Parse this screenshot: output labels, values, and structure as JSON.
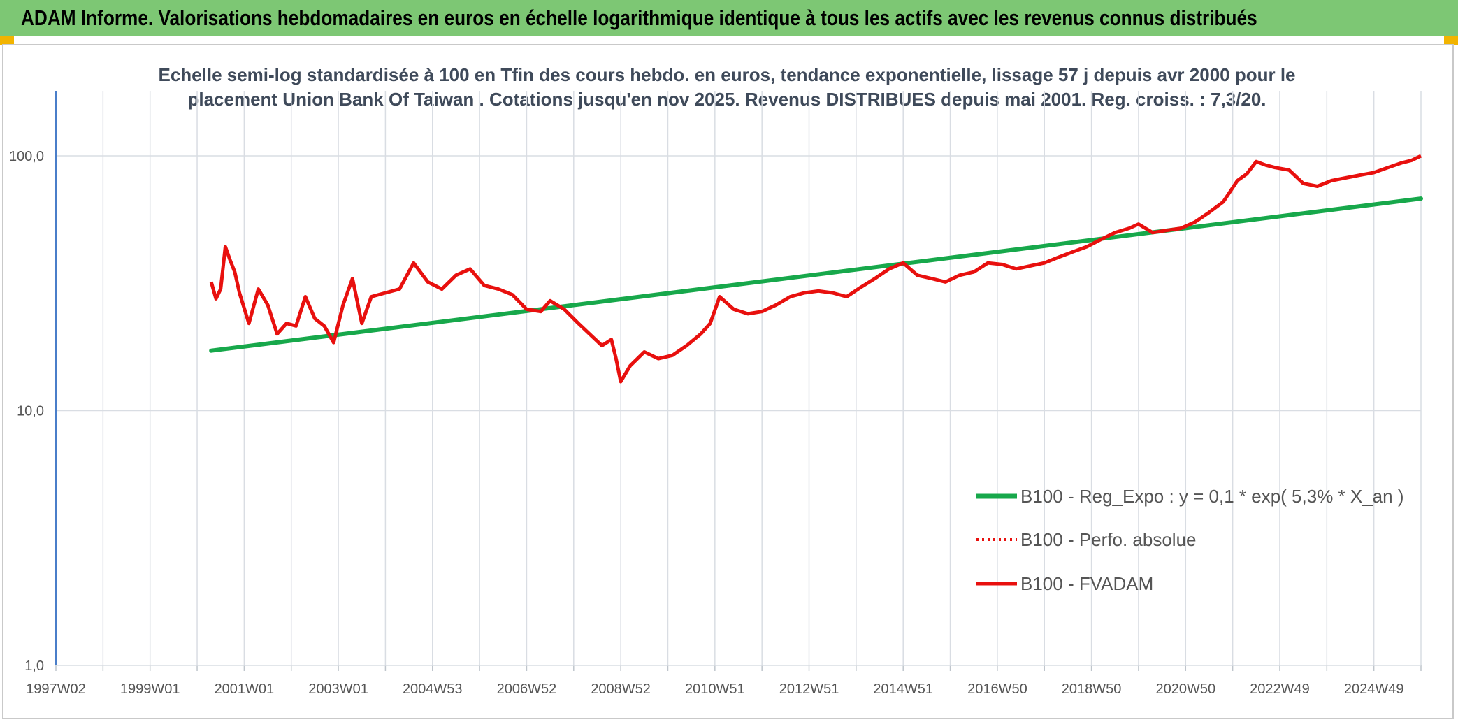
{
  "banner": {
    "title": "ADAM Informe. Valorisations hebdomadaires en euros en échelle logarithmique identique à tous les actifs avec les revenus connus distribués"
  },
  "colors": {
    "banner_bg": "#7dc774",
    "corner": "#f2b400",
    "trend": "#17a84b",
    "series": "#e8100e",
    "grid": "#d9dde3",
    "axis": "#4a7ec9"
  },
  "chart_data": {
    "type": "line",
    "title_line1": "Echelle semi-log standardisée à 100 en Tfin des cours hebdo. en euros, tendance exponentielle, lissage 57 j depuis avr 2000 pour le",
    "title_line2": "placement Union Bank Of Taiwan . Cotations jusqu'en nov 2025. Revenus DISTRIBUES depuis mai 2001. Reg. croiss. : 7,3/20.",
    "y_scale": "log",
    "ylim": [
      1,
      180
    ],
    "y_ticks": [
      {
        "value": 1,
        "label": "1,0"
      },
      {
        "value": 10,
        "label": "10,0"
      },
      {
        "value": 100,
        "label": "100,0"
      }
    ],
    "xlim": [
      1997.0,
      2026.0
    ],
    "x_ticks": [
      {
        "year": 1997.0,
        "label": "1997W02"
      },
      {
        "year": 1999.0,
        "label": "1999W01"
      },
      {
        "year": 2001.0,
        "label": "2001W01"
      },
      {
        "year": 2003.0,
        "label": "2003W01"
      },
      {
        "year": 2005.0,
        "label": "2004W53"
      },
      {
        "year": 2007.0,
        "label": "2006W52"
      },
      {
        "year": 2009.0,
        "label": "2008W52"
      },
      {
        "year": 2011.0,
        "label": "2010W51"
      },
      {
        "year": 2013.0,
        "label": "2012W51"
      },
      {
        "year": 2015.0,
        "label": "2014W51"
      },
      {
        "year": 2017.0,
        "label": "2016W50"
      },
      {
        "year": 2019.0,
        "label": "2018W50"
      },
      {
        "year": 2021.0,
        "label": "2020W50"
      },
      {
        "year": 2023.0,
        "label": "2022W49"
      },
      {
        "year": 2025.0,
        "label": "2024W49"
      }
    ],
    "series": [
      {
        "name": "B100 - Reg_Expo : y = 0,1 * exp( 5,3% *  X_an )",
        "style": "trend",
        "x": [
          2000.3,
          2026.0
        ],
        "y": [
          17.2,
          68.0
        ]
      },
      {
        "name": "B100 - Perfo. absolue",
        "style": "dotted",
        "x": [],
        "y": []
      },
      {
        "name": "B100 - FVADAM",
        "style": "solid",
        "x": [
          2000.3,
          2000.4,
          2000.5,
          2000.6,
          2000.7,
          2000.8,
          2000.9,
          2001.1,
          2001.3,
          2001.5,
          2001.7,
          2001.9,
          2002.1,
          2002.3,
          2002.5,
          2002.7,
          2002.9,
          2003.1,
          2003.3,
          2003.5,
          2003.7,
          2004.0,
          2004.3,
          2004.6,
          2004.9,
          2005.2,
          2005.5,
          2005.8,
          2006.1,
          2006.4,
          2006.7,
          2007.0,
          2007.3,
          2007.5,
          2007.8,
          2008.1,
          2008.4,
          2008.6,
          2008.8,
          2008.9,
          2009.0,
          2009.2,
          2009.5,
          2009.8,
          2010.1,
          2010.4,
          2010.7,
          2010.9,
          2011.1,
          2011.4,
          2011.7,
          2012.0,
          2012.3,
          2012.6,
          2012.9,
          2013.2,
          2013.5,
          2013.8,
          2014.1,
          2014.4,
          2014.7,
          2015.0,
          2015.3,
          2015.6,
          2015.9,
          2016.2,
          2016.5,
          2016.8,
          2017.1,
          2017.4,
          2017.7,
          2018.0,
          2018.3,
          2018.6,
          2018.9,
          2019.2,
          2019.5,
          2019.8,
          2020.0,
          2020.3,
          2020.6,
          2020.9,
          2021.2,
          2021.5,
          2021.8,
          2022.1,
          2022.3,
          2022.5,
          2022.7,
          2022.9,
          2023.2,
          2023.5,
          2023.8,
          2024.1,
          2024.4,
          2024.7,
          2025.0,
          2025.3,
          2025.6,
          2025.8,
          2026.0
        ],
        "y": [
          32.0,
          27.5,
          30.0,
          44.0,
          39.0,
          35.0,
          29.0,
          22.0,
          30.0,
          26.0,
          20.0,
          22.0,
          21.5,
          28.0,
          23.0,
          21.5,
          18.5,
          26.0,
          33.0,
          22.0,
          28.0,
          29.0,
          30.0,
          38.0,
          32.0,
          30.0,
          34.0,
          36.0,
          31.0,
          30.0,
          28.5,
          25.0,
          24.5,
          27.0,
          25.0,
          22.0,
          19.5,
          18.0,
          19.0,
          16.0,
          13.0,
          15.0,
          17.0,
          16.0,
          16.5,
          18.0,
          20.0,
          22.0,
          28.0,
          25.0,
          24.0,
          24.5,
          26.0,
          28.0,
          29.0,
          29.5,
          29.0,
          28.0,
          30.5,
          33.0,
          36.0,
          38.0,
          34.0,
          33.0,
          32.0,
          34.0,
          35.0,
          38.0,
          37.5,
          36.0,
          37.0,
          38.0,
          40.0,
          42.0,
          44.0,
          47.0,
          50.0,
          52.0,
          54.0,
          50.0,
          51.0,
          52.0,
          55.0,
          60.0,
          66.0,
          80.0,
          85.0,
          95.0,
          92.0,
          90.0,
          88.0,
          78.0,
          76.0,
          80.0,
          82.0,
          84.0,
          86.0,
          90.0,
          94.0,
          96.0,
          100.0
        ]
      }
    ],
    "legend_position": "lower-right",
    "grid": true
  }
}
